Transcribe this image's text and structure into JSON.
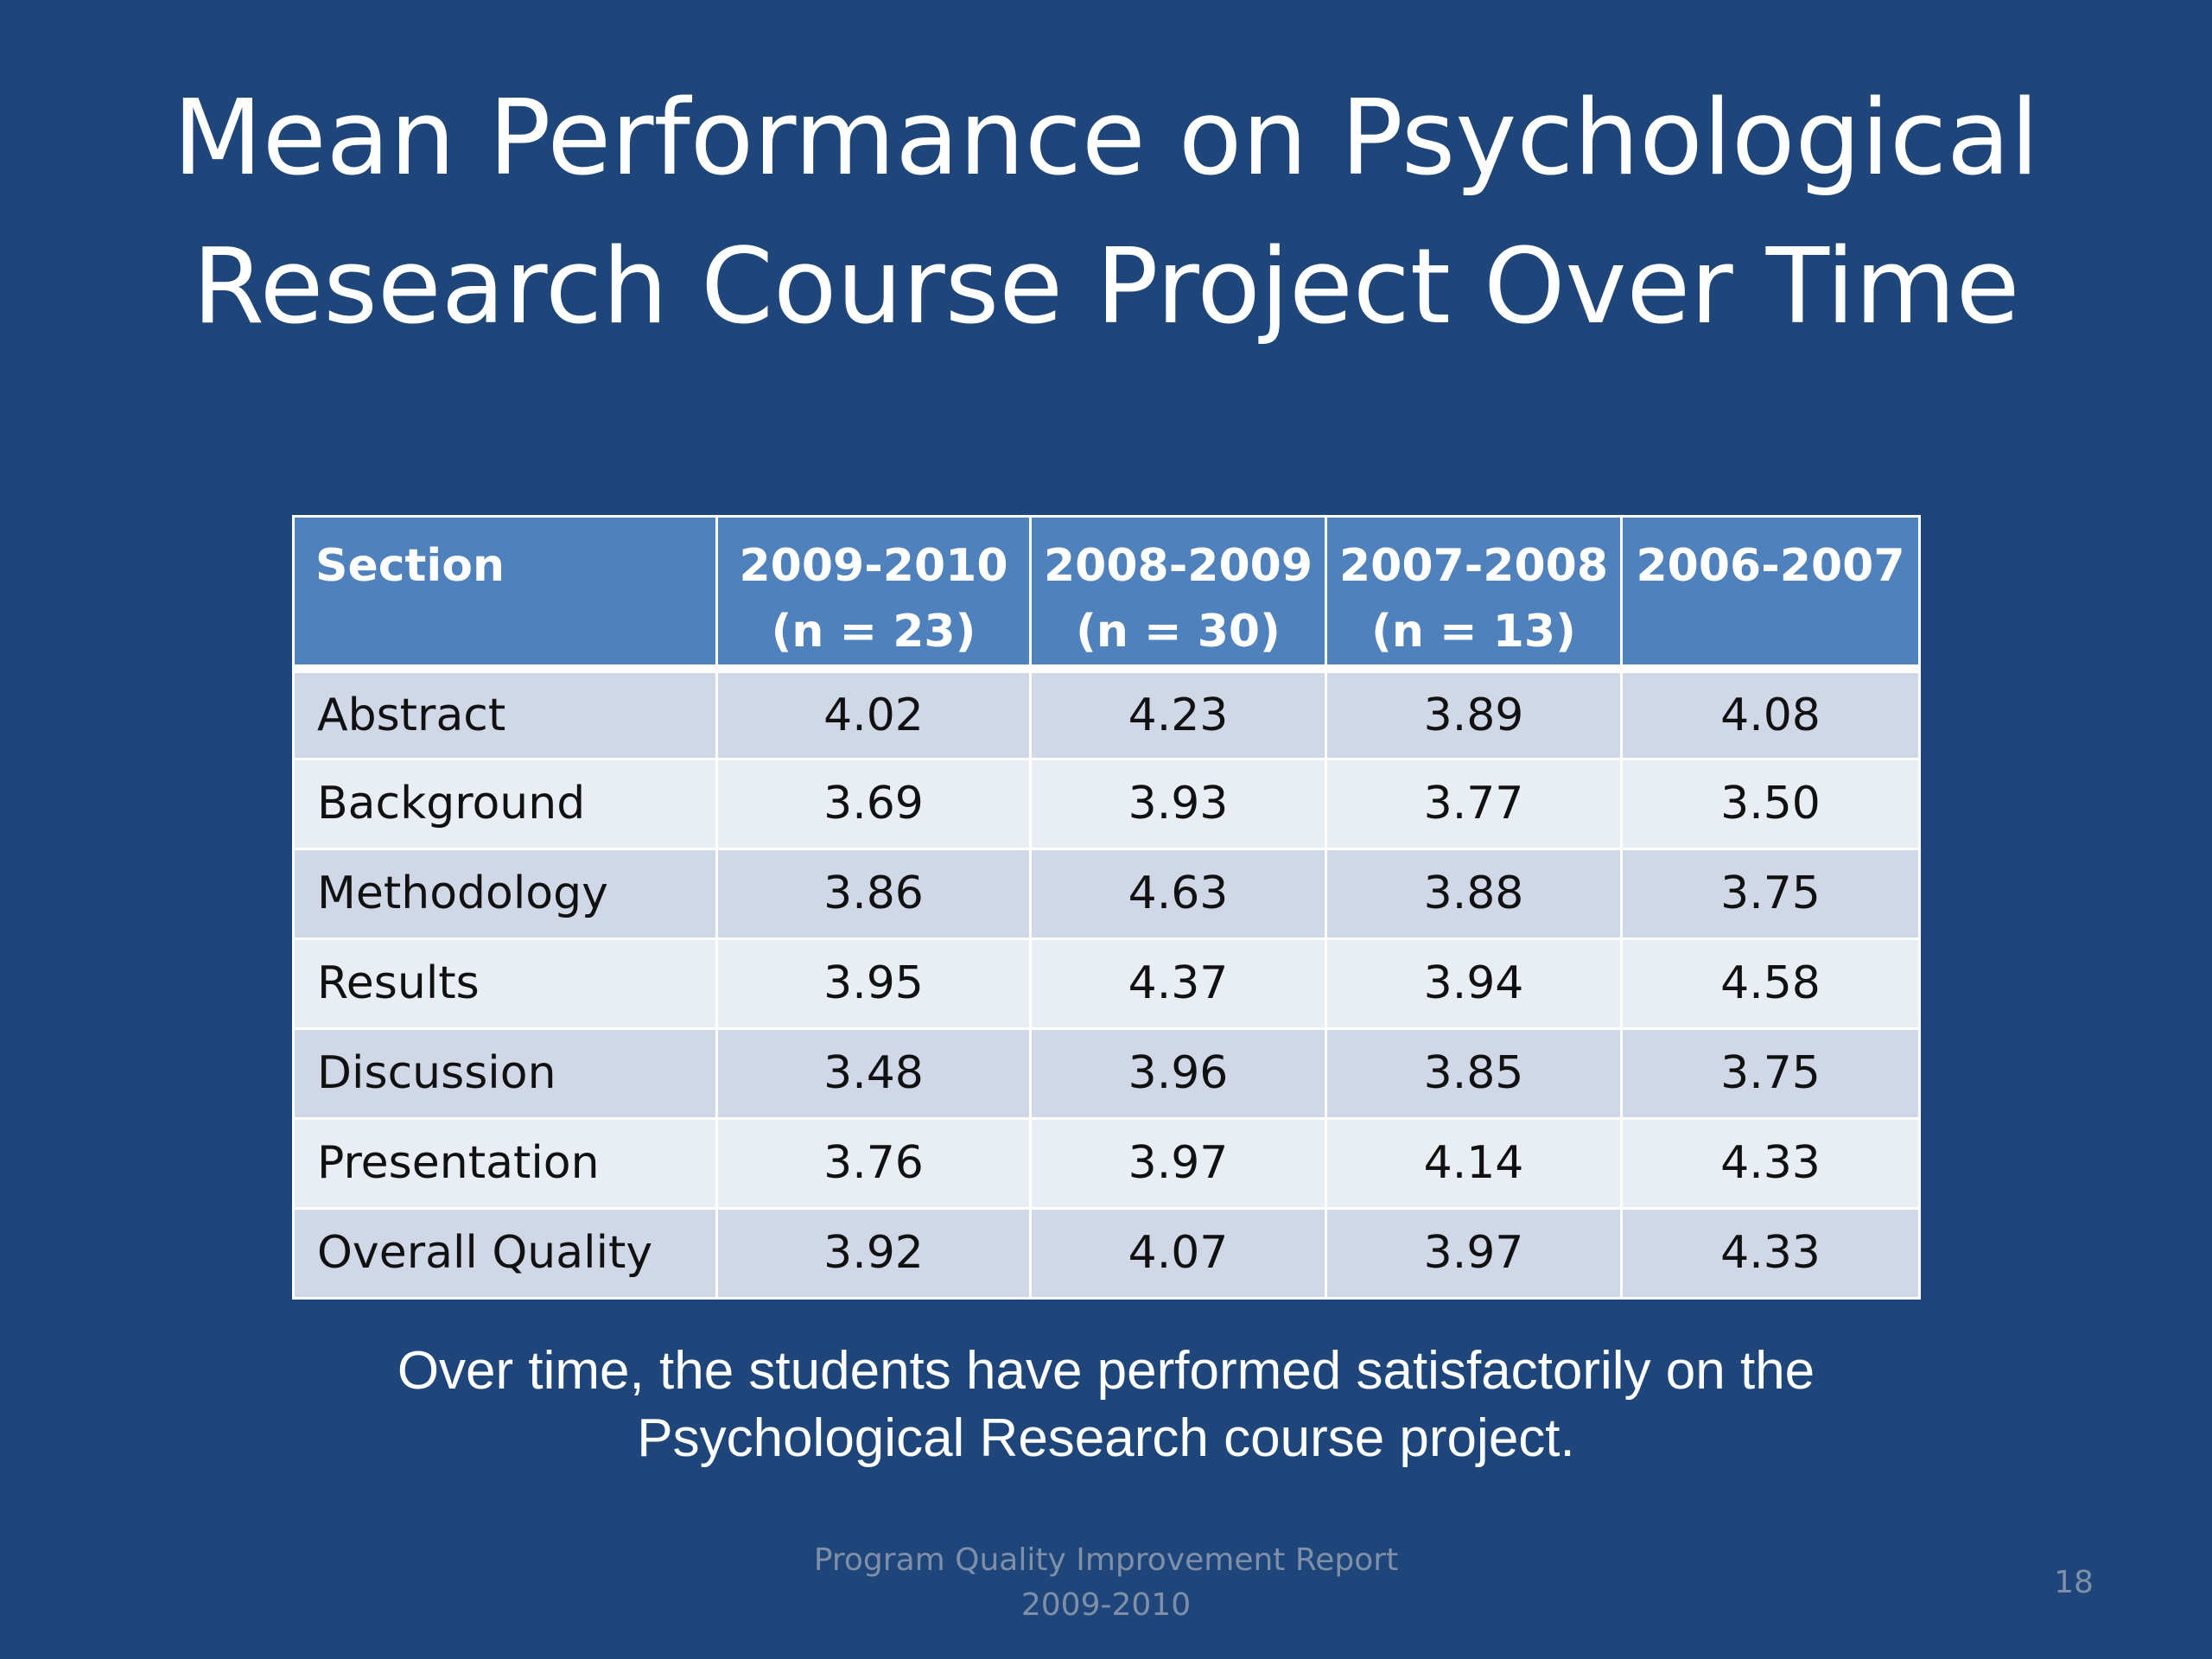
{
  "slide": {
    "title_lines": [
      "Mean Performance on Psychological",
      "Research Course Project Over Time"
    ],
    "table": {
      "header": {
        "section": "Section",
        "columns": [
          {
            "year": "2009-2010",
            "n": "(n = 23)"
          },
          {
            "year": "2008-2009",
            "n": "(n = 30)"
          },
          {
            "year": "2007-2008",
            "n": "(n = 13)"
          },
          {
            "year": "2006-2007",
            "n": ""
          }
        ]
      },
      "rows": [
        {
          "label": "Abstract",
          "values": [
            "4.02",
            "4.23",
            "3.89",
            "4.08"
          ]
        },
        {
          "label": "Background",
          "values": [
            "3.69",
            "3.93",
            "3.77",
            "3.50"
          ]
        },
        {
          "label": "Methodology",
          "values": [
            "3.86",
            "4.63",
            "3.88",
            "3.75"
          ]
        },
        {
          "label": "Results",
          "values": [
            "3.95",
            "4.37",
            "3.94",
            "4.58"
          ]
        },
        {
          "label": "Discussion",
          "values": [
            "3.48",
            "3.96",
            "3.85",
            "3.75"
          ]
        },
        {
          "label": "Presentation",
          "values": [
            "3.76",
            "3.97",
            "4.14",
            "4.33"
          ]
        },
        {
          "label": "Overall Quality",
          "values": [
            "3.92",
            "4.07",
            "3.97",
            "4.33"
          ]
        }
      ]
    },
    "caption_lines": [
      "Over time, the students have performed satisfactorily on the",
      "Psychological Research course project."
    ],
    "footer_lines": [
      "Program Quality Improvement Report",
      "2009-2010"
    ],
    "page_number": "18",
    "colors": {
      "background": "#1f467b",
      "header_fill": "#4f81bd",
      "row_band_dark": "#d0d8e8",
      "row_band_light": "#e9edf4",
      "footer_text": "#7f8fa8"
    }
  }
}
